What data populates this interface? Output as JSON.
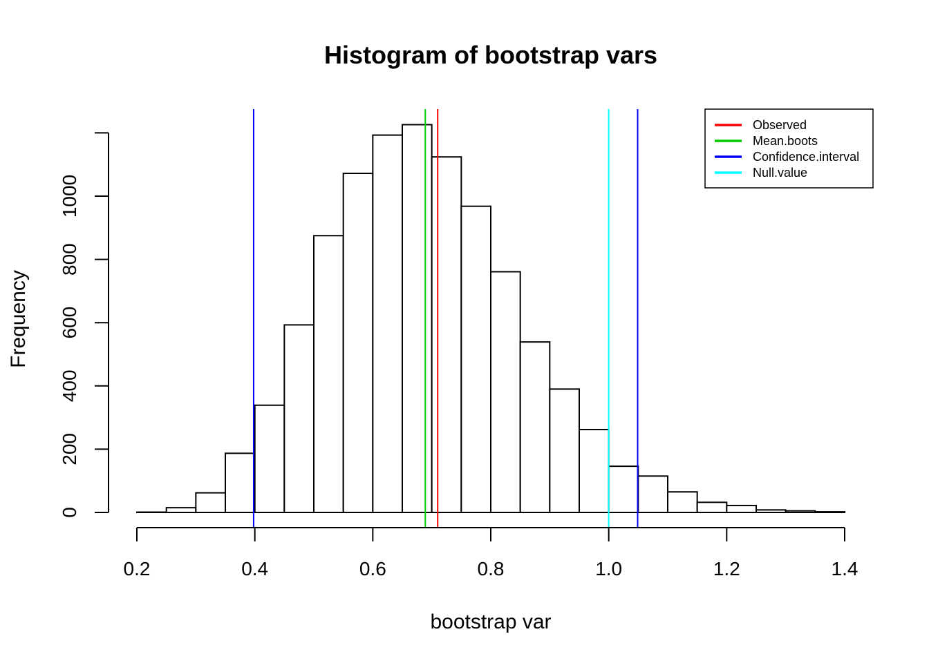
{
  "chart_data": {
    "type": "bar",
    "title": "Histogram of bootstrap vars",
    "xlabel": "bootstrap var",
    "ylabel": "Frequency",
    "xlim": [
      0.2,
      1.4
    ],
    "ylim": [
      0,
      1200
    ],
    "x_ticks": [
      0.2,
      0.4,
      0.6,
      0.8,
      1.0,
      1.2,
      1.4
    ],
    "x_tick_labels": [
      "0.2",
      "0.4",
      "0.6",
      "0.8",
      "1.0",
      "1.2",
      "1.4"
    ],
    "y_ticks": [
      0,
      200,
      400,
      600,
      800,
      1000
    ],
    "y_tick_labels": [
      "0",
      "200",
      "400",
      "600",
      "800",
      "1000"
    ],
    "bin_width": 0.05,
    "bins": [
      {
        "start": 0.2,
        "end": 0.25,
        "count": 1
      },
      {
        "start": 0.25,
        "end": 0.3,
        "count": 15
      },
      {
        "start": 0.3,
        "end": 0.35,
        "count": 62
      },
      {
        "start": 0.35,
        "end": 0.4,
        "count": 187
      },
      {
        "start": 0.4,
        "end": 0.45,
        "count": 339
      },
      {
        "start": 0.45,
        "end": 0.5,
        "count": 593
      },
      {
        "start": 0.5,
        "end": 0.55,
        "count": 875
      },
      {
        "start": 0.55,
        "end": 0.6,
        "count": 1072
      },
      {
        "start": 0.6,
        "end": 0.65,
        "count": 1193
      },
      {
        "start": 0.65,
        "end": 0.7,
        "count": 1226
      },
      {
        "start": 0.7,
        "end": 0.75,
        "count": 1124
      },
      {
        "start": 0.75,
        "end": 0.8,
        "count": 968
      },
      {
        "start": 0.8,
        "end": 0.85,
        "count": 761
      },
      {
        "start": 0.85,
        "end": 0.9,
        "count": 539
      },
      {
        "start": 0.9,
        "end": 0.95,
        "count": 390
      },
      {
        "start": 0.95,
        "end": 1.0,
        "count": 262
      },
      {
        "start": 1.0,
        "end": 1.05,
        "count": 146
      },
      {
        "start": 1.05,
        "end": 1.1,
        "count": 115
      },
      {
        "start": 1.1,
        "end": 1.15,
        "count": 65
      },
      {
        "start": 1.15,
        "end": 1.2,
        "count": 32
      },
      {
        "start": 1.2,
        "end": 1.25,
        "count": 22
      },
      {
        "start": 1.25,
        "end": 1.3,
        "count": 8
      },
      {
        "start": 1.3,
        "end": 1.35,
        "count": 5
      },
      {
        "start": 1.35,
        "end": 1.4,
        "count": 2
      }
    ],
    "vertical_lines": [
      {
        "name": "Observed",
        "x": 0.71,
        "color": "#ff0000"
      },
      {
        "name": "Mean.boots",
        "x": 0.689,
        "color": "#00cd00"
      },
      {
        "name": "Confidence.interval",
        "x": 0.398,
        "color": "#0000ff"
      },
      {
        "name": "Confidence.interval",
        "x": 1.049,
        "color": "#0000ff"
      },
      {
        "name": "Null.value",
        "x": 1.0,
        "color": "#00ffff"
      }
    ],
    "legend": {
      "position": "top-right",
      "entries": [
        {
          "label": "Observed",
          "color": "#ff0000"
        },
        {
          "label": "Mean.boots",
          "color": "#00cd00"
        },
        {
          "label": "Confidence.interval",
          "color": "#0000ff"
        },
        {
          "label": "Null.value",
          "color": "#00ffff"
        }
      ]
    }
  }
}
